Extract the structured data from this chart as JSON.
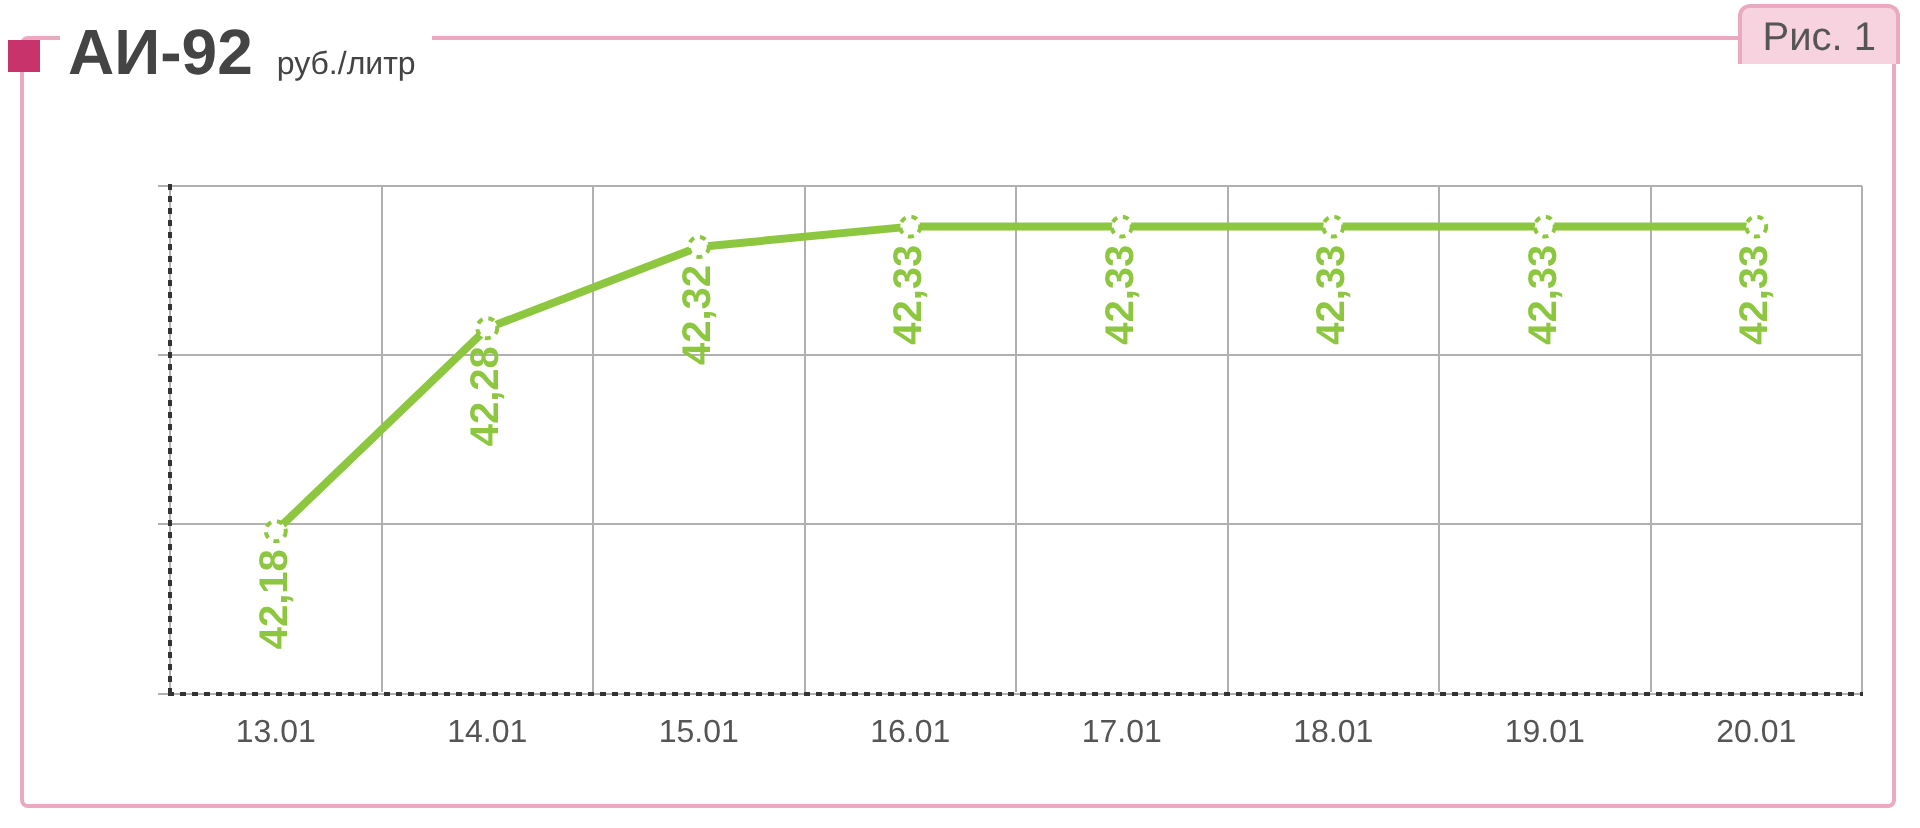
{
  "chart_data": {
    "type": "line",
    "title": "АИ-92",
    "subtitle": "руб./литр",
    "annotations": [
      "Рис. 1"
    ],
    "categories": [
      "13.01",
      "14.01",
      "15.01",
      "16.01",
      "17.01",
      "18.01",
      "19.01",
      "20.01"
    ],
    "series": [
      {
        "color": "#8dc63f",
        "values": [
          42.18,
          42.28,
          42.32,
          42.33,
          42.33,
          42.33,
          42.33,
          42.33
        ],
        "value_labels": [
          "42,18",
          "42,28",
          "42,32",
          "42,33",
          "42,33",
          "42,33",
          "42,33",
          "42,33"
        ]
      }
    ],
    "ylim": [
      42.1,
      42.35
    ],
    "yticks": [
      {
        "value": 42.1,
        "label": null
      },
      {
        "value": 42.1833,
        "label": null
      },
      {
        "value": 42.2667,
        "label": null
      },
      {
        "value": 42.35,
        "label": null
      }
    ],
    "tick_labels": "x",
    "grid": true,
    "marker": "circle",
    "line_style": "solid",
    "legend": false
  }
}
